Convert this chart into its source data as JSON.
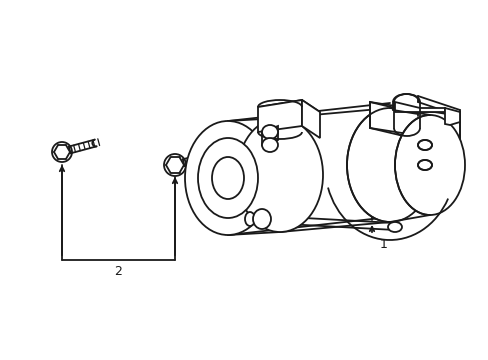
{
  "background_color": "#ffffff",
  "line_color": "#1a1a1a",
  "line_width": 1.3,
  "label_1": "1",
  "label_2": "2",
  "fig_width": 4.89,
  "fig_height": 3.6,
  "dpi": 100
}
